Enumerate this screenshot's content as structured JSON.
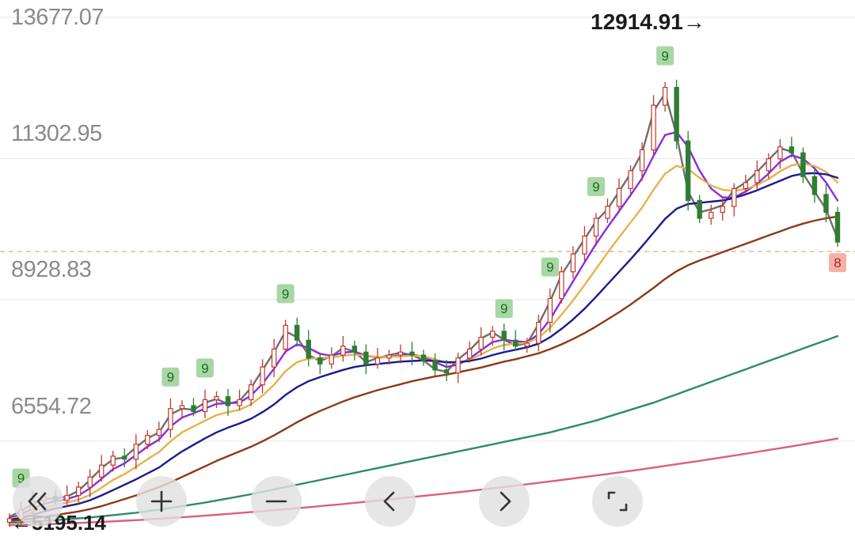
{
  "chart_data": {
    "type": "candlestick",
    "y_ticks": [
      "13677.07",
      "11302.95",
      "8928.83",
      "6554.72"
    ],
    "y_tick_values": [
      13677.07,
      11302.95,
      8928.83,
      6554.72
    ],
    "ylim": [
      5195.14,
      13677.07
    ],
    "highest_label": "12914.91→",
    "lowest_label": "←5195.14",
    "reference_line": 9740,
    "grid": true,
    "price": [
      5250,
      5400,
      5550,
      5620,
      5560,
      5640,
      5780,
      5950,
      6150,
      6300,
      6250,
      6500,
      6650,
      6750,
      7100,
      7150,
      7050,
      7250,
      7300,
      7150,
      7250,
      7500,
      7800,
      8100,
      8500,
      8250,
      7950,
      7850,
      8000,
      8150,
      8050,
      7850,
      7950,
      8000,
      8050,
      8000,
      7900,
      7750,
      7700,
      7950,
      8100,
      8300,
      8400,
      8250,
      8150,
      8200,
      8550,
      8950,
      9400,
      9700,
      10000,
      10300,
      10500,
      10800,
      11100,
      11450,
      12200,
      12500,
      11600,
      10600,
      10300,
      10400,
      10500,
      10800,
      10900,
      11100,
      11300,
      11500,
      11400,
      11000,
      10700,
      10400,
      9900
    ],
    "moving_averages": [
      {
        "color": "#6e6e6e",
        "values": [
          5280,
          5380,
          5500,
          5580,
          5590,
          5620,
          5720,
          5900,
          6100,
          6250,
          6280,
          6450,
          6600,
          6700,
          7000,
          7100,
          7080,
          7200,
          7260,
          7180,
          7230,
          7450,
          7750,
          8050,
          8400,
          8300,
          8000,
          7900,
          7980,
          8120,
          8060,
          7880,
          7950,
          8000,
          8040,
          8000,
          7910,
          7760,
          7720,
          7930,
          8080,
          8280,
          8380,
          8260,
          8160,
          8200,
          8520,
          8900,
          9350,
          9650,
          9950,
          10250,
          10450,
          10750,
          11050,
          11400,
          12100,
          12400,
          11700,
          10750,
          10400,
          10450,
          10520,
          10780,
          10900,
          11080,
          11280,
          11480,
          11420,
          11050,
          10750,
          10450,
          9950
        ]
      },
      {
        "color": "#8b2be2",
        "values": [
          5260,
          5320,
          5420,
          5500,
          5540,
          5580,
          5640,
          5760,
          5920,
          6080,
          6180,
          6320,
          6460,
          6580,
          6800,
          6950,
          7020,
          7100,
          7180,
          7190,
          7200,
          7320,
          7520,
          7770,
          8060,
          8180,
          8120,
          8020,
          7990,
          8040,
          8060,
          7990,
          7960,
          7970,
          8000,
          8010,
          7970,
          7880,
          7800,
          7840,
          7940,
          8080,
          8220,
          8260,
          8230,
          8220,
          8350,
          8600,
          8920,
          9240,
          9560,
          9870,
          10150,
          10420,
          10690,
          10970,
          11350,
          11700,
          11750,
          11500,
          11100,
          10800,
          10650,
          10650,
          10750,
          10880,
          11050,
          11250,
          11360,
          11300,
          11140,
          10900,
          10600
        ]
      },
      {
        "color": "#e6b24a",
        "values": [
          5240,
          5290,
          5360,
          5430,
          5480,
          5520,
          5570,
          5650,
          5770,
          5900,
          6000,
          6120,
          6250,
          6370,
          6550,
          6700,
          6800,
          6900,
          6990,
          7040,
          7080,
          7170,
          7320,
          7500,
          7730,
          7880,
          7940,
          7950,
          7960,
          7990,
          8010,
          7990,
          7970,
          7970,
          7980,
          7990,
          7980,
          7930,
          7870,
          7870,
          7920,
          8010,
          8110,
          8170,
          8190,
          8210,
          8290,
          8460,
          8680,
          8920,
          9180,
          9450,
          9720,
          9980,
          10230,
          10480,
          10780,
          11050,
          11180,
          11130,
          10980,
          10850,
          10780,
          10760,
          10790,
          10860,
          10960,
          11090,
          11190,
          11220,
          11180,
          11080,
          10900
        ]
      },
      {
        "color": "#1c1c8c",
        "values": [
          5230,
          5260,
          5310,
          5370,
          5420,
          5460,
          5500,
          5560,
          5640,
          5730,
          5820,
          5910,
          6010,
          6110,
          6250,
          6380,
          6490,
          6600,
          6700,
          6780,
          6850,
          6930,
          7040,
          7170,
          7330,
          7460,
          7560,
          7630,
          7690,
          7750,
          7800,
          7830,
          7850,
          7870,
          7890,
          7900,
          7910,
          7900,
          7880,
          7880,
          7900,
          7940,
          8000,
          8050,
          8090,
          8130,
          8190,
          8300,
          8440,
          8600,
          8780,
          8980,
          9190,
          9400,
          9610,
          9830,
          10060,
          10290,
          10460,
          10540,
          10560,
          10580,
          10600,
          10640,
          10700,
          10770,
          10850,
          10930,
          11010,
          11050,
          11060,
          11040,
          10980
        ]
      },
      {
        "color": "#8b3a1a",
        "values": [
          5210,
          5230,
          5250,
          5280,
          5310,
          5340,
          5370,
          5410,
          5460,
          5520,
          5580,
          5640,
          5710,
          5780,
          5860,
          5950,
          6040,
          6130,
          6220,
          6300,
          6380,
          6460,
          6550,
          6650,
          6760,
          6870,
          6970,
          7060,
          7140,
          7220,
          7290,
          7350,
          7410,
          7460,
          7510,
          7560,
          7600,
          7640,
          7670,
          7710,
          7750,
          7790,
          7840,
          7890,
          7930,
          7980,
          8030,
          8100,
          8180,
          8270,
          8370,
          8480,
          8600,
          8720,
          8850,
          8990,
          9130,
          9280,
          9410,
          9510,
          9590,
          9660,
          9730,
          9800,
          9870,
          9940,
          10010,
          10080,
          10150,
          10210,
          10260,
          10300,
          10330
        ]
      },
      {
        "color": "#2e8b6a",
        "values": [
          5180,
          5190,
          5200,
          5210,
          5225,
          5240,
          5255,
          5270,
          5290,
          5310,
          5330,
          5350,
          5375,
          5400,
          5430,
          5460,
          5490,
          5520,
          5555,
          5590,
          5625,
          5660,
          5700,
          5740,
          5780,
          5820,
          5860,
          5900,
          5940,
          5980,
          6020,
          6060,
          6100,
          6140,
          6180,
          6220,
          6260,
          6300,
          6340,
          6380,
          6420,
          6460,
          6500,
          6540,
          6580,
          6620,
          6660,
          6700,
          6750,
          6800,
          6850,
          6900,
          6960,
          7020,
          7080,
          7140,
          7200,
          7270,
          7340,
          7410,
          7480,
          7550,
          7620,
          7690,
          7760,
          7830,
          7900,
          7970,
          8040,
          8110,
          8180,
          8250,
          8320
        ]
      },
      {
        "color": "#d9607a",
        "values": [
          5140,
          5145,
          5150,
          5155,
          5162,
          5170,
          5178,
          5186,
          5195,
          5205,
          5215,
          5225,
          5236,
          5248,
          5260,
          5273,
          5286,
          5300,
          5315,
          5330,
          5345,
          5360,
          5376,
          5392,
          5408,
          5425,
          5442,
          5460,
          5478,
          5496,
          5515,
          5534,
          5553,
          5572,
          5592,
          5612,
          5632,
          5652,
          5673,
          5694,
          5715,
          5737,
          5759,
          5782,
          5805,
          5828,
          5852,
          5876,
          5900,
          5925,
          5950,
          5975,
          6001,
          6027,
          6054,
          6081,
          6108,
          6136,
          6164,
          6193,
          6222,
          6251,
          6281,
          6311,
          6341,
          6372,
          6403,
          6434,
          6466,
          6498,
          6530,
          6563,
          6596
        ]
      }
    ],
    "markers": [
      {
        "i": 1,
        "label": "9",
        "kind": "green"
      },
      {
        "i": 14,
        "label": "9",
        "kind": "green"
      },
      {
        "i": 17,
        "label": "9",
        "kind": "green"
      },
      {
        "i": 24,
        "label": "9",
        "kind": "green"
      },
      {
        "i": 43,
        "label": "9",
        "kind": "green"
      },
      {
        "i": 47,
        "label": "9",
        "kind": "green"
      },
      {
        "i": 51,
        "label": "9",
        "kind": "green"
      },
      {
        "i": 57,
        "label": "9",
        "kind": "green"
      },
      {
        "i": 72,
        "label": "8",
        "kind": "red"
      }
    ]
  },
  "controls": {
    "back_all": "‹‹",
    "zoom_in": "+",
    "zoom_out": "−",
    "prev": "‹",
    "next": "›",
    "fullscreen": "⛶"
  }
}
